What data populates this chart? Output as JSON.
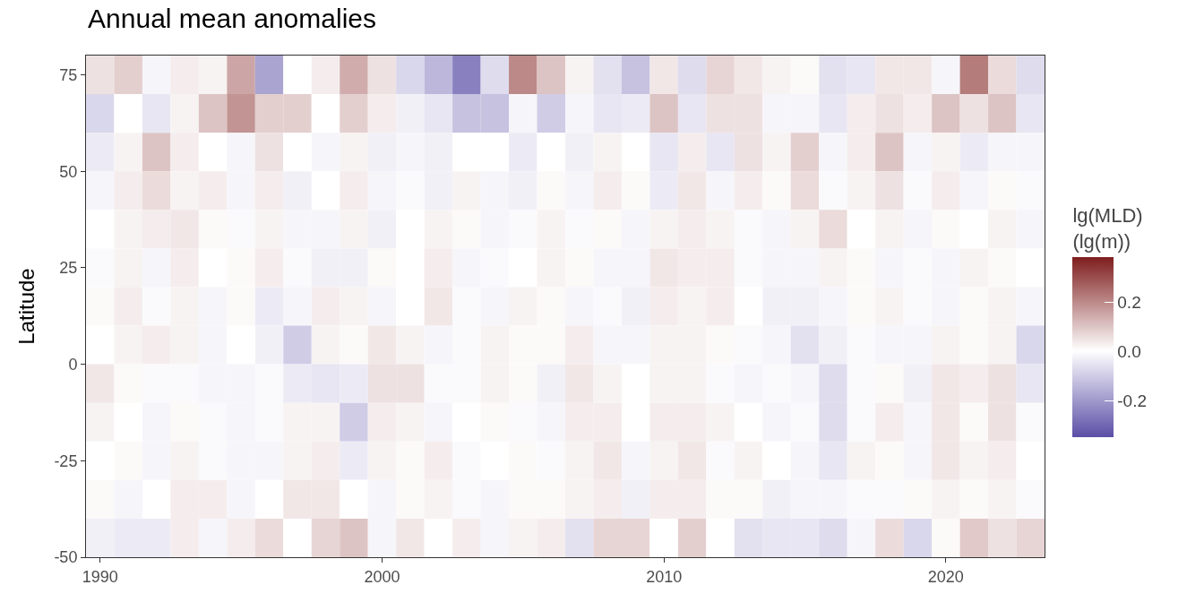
{
  "chart_data": {
    "type": "heatmap",
    "title": "Annual mean anomalies",
    "ylabel": "Latitude",
    "clabel": "lg(MLD)\n(lg(m))",
    "x": [
      1990,
      1991,
      1992,
      1993,
      1994,
      1995,
      1996,
      1997,
      1998,
      1999,
      2000,
      2001,
      2002,
      2003,
      2004,
      2005,
      2006,
      2007,
      2008,
      2009,
      2010,
      2011,
      2012,
      2013,
      2014,
      2015,
      2016,
      2017,
      2018,
      2019,
      2020,
      2021,
      2022,
      2023
    ],
    "cells": [
      [
        0.05,
        0.08,
        -0.02,
        0.03,
        0.02,
        0.15,
        -0.18,
        0,
        0.03,
        0.14,
        0.05,
        -0.08,
        -0.14,
        -0.25,
        -0.07,
        0.2,
        0.1,
        0.02,
        -0.06,
        -0.12,
        0.04,
        -0.07,
        0.07,
        0.04,
        0.02,
        0.01,
        -0.06,
        -0.05,
        0.04,
        0.04,
        -0.02,
        0.22,
        0.06,
        -0.07
      ],
      [
        -0.08,
        0,
        -0.05,
        0.02,
        0.1,
        0.18,
        0.08,
        0.08,
        0,
        0.08,
        0.03,
        -0.03,
        -0.05,
        -0.12,
        -0.12,
        -0.02,
        -0.1,
        -0.02,
        -0.05,
        -0.04,
        0.1,
        -0.05,
        0.05,
        0.05,
        -0.02,
        -0.02,
        -0.05,
        0.03,
        0.05,
        0.03,
        0.1,
        0.05,
        0.1,
        -0.05
      ],
      [
        -0.04,
        0.02,
        0.1,
        0.03,
        0,
        -0.02,
        0.05,
        0,
        -0.02,
        0.02,
        -0.03,
        -0.02,
        -0.03,
        0,
        0,
        -0.04,
        0,
        -0.03,
        0.02,
        0,
        -0.05,
        0.03,
        -0.05,
        0.05,
        0.02,
        0.08,
        -0.02,
        0.03,
        0.1,
        -0.02,
        0.02,
        -0.04,
        -0.02,
        -0.02
      ],
      [
        -0.02,
        0.03,
        0.06,
        0.02,
        0.03,
        -0.02,
        0.03,
        -0.03,
        0,
        0.03,
        -0.02,
        -0.01,
        -0.03,
        0.02,
        -0.02,
        -0.03,
        0.01,
        -0.02,
        0.03,
        0.01,
        -0.04,
        0.04,
        -0.02,
        0.03,
        0.01,
        0.06,
        -0.01,
        0.02,
        0.05,
        -0.01,
        0.03,
        -0.02,
        0.01,
        -0.01
      ],
      [
        0,
        0.02,
        0.03,
        0.04,
        0.01,
        -0.01,
        0.02,
        -0.02,
        -0.02,
        0.02,
        -0.03,
        0,
        0.02,
        0.01,
        -0.02,
        -0.01,
        0.02,
        -0.01,
        0.01,
        -0.02,
        0.02,
        0.03,
        0.02,
        -0.01,
        -0.02,
        0.02,
        0.06,
        0,
        0.02,
        -0.02,
        0.01,
        0,
        0.02,
        -0.02
      ],
      [
        -0.01,
        0.02,
        -0.02,
        0.03,
        0,
        0.01,
        0.03,
        -0.01,
        -0.03,
        -0.03,
        0.01,
        0,
        0.03,
        -0.02,
        -0.01,
        0,
        0.02,
        0.01,
        -0.02,
        -0.02,
        0.04,
        0.03,
        0.03,
        -0.01,
        -0.02,
        -0.02,
        0.02,
        0.01,
        -0.02,
        -0.01,
        -0.02,
        0.02,
        0.01,
        0
      ],
      [
        0.01,
        0.03,
        -0.01,
        0.02,
        -0.02,
        0.01,
        -0.04,
        -0.02,
        0.03,
        0.02,
        -0.02,
        0,
        0.04,
        -0.01,
        -0.02,
        0.02,
        0.01,
        -0.02,
        -0.01,
        -0.03,
        0.03,
        0.02,
        0.03,
        0,
        -0.03,
        -0.03,
        -0.02,
        0.01,
        0.02,
        -0.01,
        -0.02,
        0.01,
        0.02,
        -0.02
      ],
      [
        0,
        0.02,
        0.03,
        0.02,
        -0.02,
        0,
        -0.03,
        -0.1,
        0.02,
        0.01,
        0.04,
        0.02,
        -0.02,
        -0.01,
        0.02,
        0.01,
        0.01,
        0.03,
        -0.02,
        -0.02,
        0.02,
        0.02,
        0.01,
        -0.01,
        -0.02,
        -0.06,
        -0.03,
        -0.01,
        -0.02,
        -0.02,
        0.02,
        0.01,
        0.02,
        -0.08
      ],
      [
        0.04,
        0.01,
        -0.01,
        -0.01,
        -0.02,
        -0.02,
        -0.01,
        -0.04,
        -0.05,
        -0.04,
        0.05,
        0.05,
        -0.01,
        -0.01,
        0.02,
        0.01,
        -0.03,
        0.04,
        0.02,
        0,
        0.02,
        0.02,
        -0.01,
        -0.02,
        -0.01,
        -0.02,
        -0.07,
        -0.01,
        0.01,
        -0.03,
        0.04,
        0.03,
        0.05,
        -0.05
      ],
      [
        0.02,
        0,
        -0.02,
        0.01,
        -0.01,
        -0.02,
        -0.01,
        0.02,
        0.02,
        -0.1,
        0.03,
        0.02,
        -0.02,
        0,
        0.01,
        -0.01,
        -0.02,
        0.03,
        0.03,
        0,
        0.03,
        0.03,
        0.02,
        0,
        -0.02,
        -0.01,
        -0.07,
        -0.01,
        0.03,
        -0.02,
        0.04,
        0.01,
        0.05,
        -0.01
      ],
      [
        0,
        0.01,
        -0.02,
        0.02,
        -0.01,
        -0.02,
        -0.02,
        0.02,
        0.03,
        -0.04,
        0.02,
        0.01,
        0.03,
        -0.01,
        0,
        0.01,
        -0.01,
        0.02,
        0.04,
        -0.02,
        0.02,
        0.04,
        -0.01,
        0.02,
        0,
        -0.02,
        -0.05,
        0.02,
        0.01,
        -0.02,
        0.04,
        0.02,
        0.03,
        0
      ],
      [
        0.01,
        -0.02,
        0,
        0.03,
        0.03,
        -0.02,
        0,
        0.04,
        0.04,
        0,
        -0.02,
        0.01,
        0.02,
        -0.01,
        -0.02,
        0.01,
        0.01,
        0.02,
        0.03,
        -0.03,
        0.03,
        0.03,
        0.01,
        0.01,
        -0.03,
        -0.02,
        -0.02,
        -0.01,
        -0.01,
        0.01,
        0.02,
        0.01,
        0.02,
        -0.01
      ],
      [
        -0.03,
        -0.04,
        -0.04,
        0.03,
        -0.02,
        0.03,
        0.06,
        0,
        0.07,
        0.1,
        -0.02,
        0.04,
        0,
        0.03,
        -0.02,
        0.02,
        0.03,
        -0.06,
        0.07,
        0.07,
        0,
        0.08,
        0,
        -0.06,
        -0.05,
        -0.05,
        -0.07,
        -0.02,
        0.06,
        -0.08,
        0.01,
        0.09,
        0.05,
        0.07
      ]
    ],
    "colors": [
      "#5a4ea6",
      "#ffffff",
      "#7f1d1d"
    ],
    "clim": [
      -0.35,
      0.38
    ],
    "cticks": [
      -0.2,
      {
        "value": 0,
        "label": "0.0"
      },
      0.2
    ],
    "xlim": [
      1989.5,
      2023.5
    ],
    "xticks": [
      1990,
      2000,
      2010,
      2020
    ],
    "ylim": [
      -50,
      80
    ],
    "yticks": [
      -50,
      -25,
      0,
      25,
      50,
      75
    ]
  }
}
